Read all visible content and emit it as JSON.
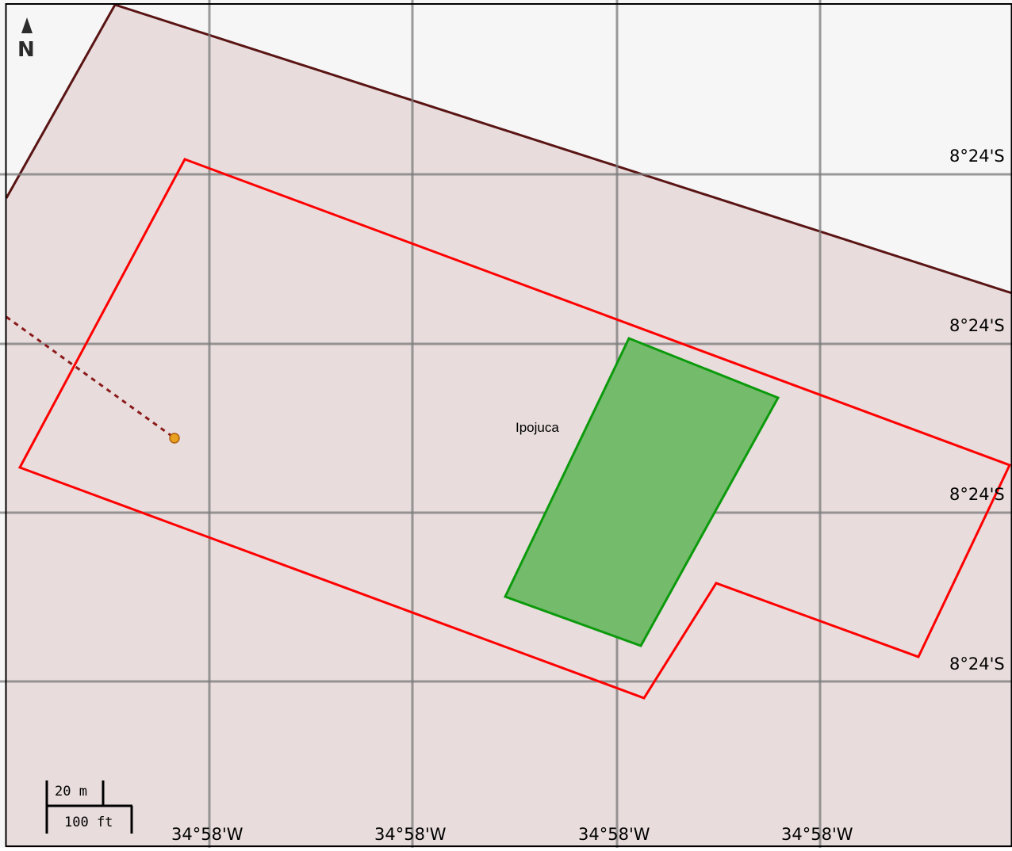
{
  "map": {
    "colors": {
      "background": "#f6f6f6",
      "region_fill": "#e8dcdc",
      "region_border": "#5a1414",
      "boundary": "#ff0000",
      "park_fill": "#74bb6c",
      "park_border": "#0c9a0c",
      "graticule": "#808080",
      "poi": "#e8a020",
      "track": "#8b1a1a",
      "frame": "#000000"
    },
    "place_label": "Ipojuca",
    "north": {
      "label": "N",
      "icon": "north-arrow-icon"
    },
    "latitude_labels": [
      "8°24'S",
      "8°24'S",
      "8°24'S",
      "8°24'S"
    ],
    "longitude_labels": [
      "34°58'W",
      "34°58'W",
      "34°58'W",
      "34°58'W"
    ],
    "scale_bar": {
      "metric_label": "20 m",
      "imperial_label": "100 ft"
    }
  }
}
